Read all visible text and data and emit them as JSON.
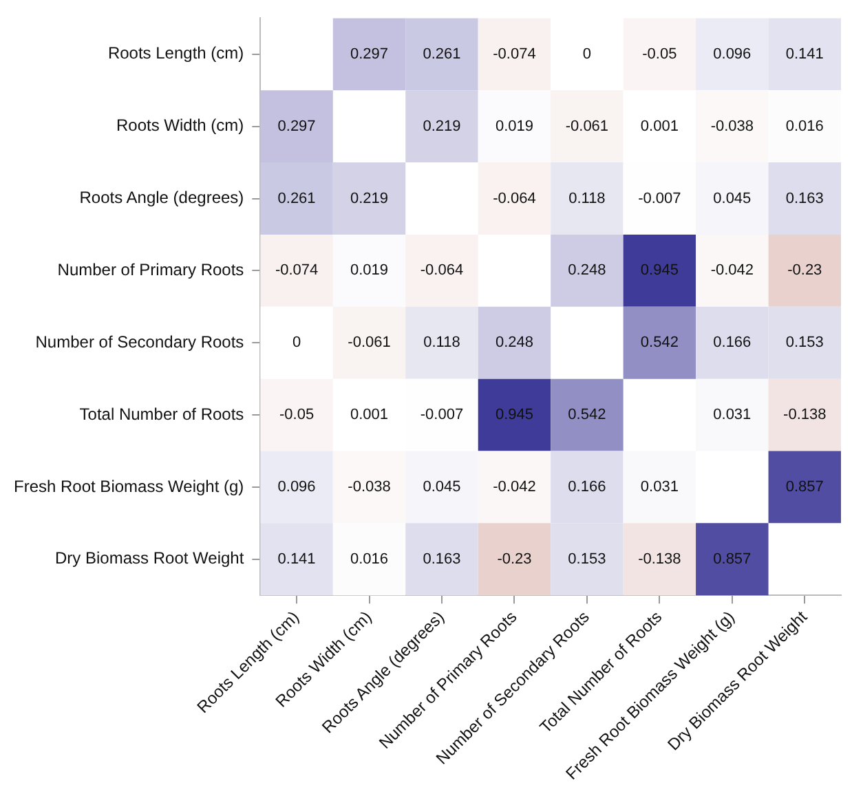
{
  "chart_data": {
    "type": "heatmap",
    "categories": [
      "Roots Length (cm)",
      "Roots Width (cm)",
      "Roots Angle (degrees)",
      "Number of Primary Roots",
      "Number of Secondary Roots",
      "Total Number of Roots",
      "Fresh Root Biomass Weight (g)",
      "Dry Biomass Root Weight"
    ],
    "y_categories": [
      "Roots Length (cm)",
      "Roots Width (cm)",
      "Roots Angle (degrees)",
      "Number of Primary Roots",
      "Number of Secondary Roots",
      "Total Number of Roots",
      "Fresh Root Biomass Weight (g)",
      "Dry Biomass Root Weight"
    ],
    "cells": [
      [
        null,
        0.297,
        0.261,
        -0.074,
        0,
        -0.05,
        0.096,
        0.141
      ],
      [
        0.297,
        null,
        0.219,
        0.019,
        -0.061,
        0.001,
        -0.038,
        0.016
      ],
      [
        0.261,
        0.219,
        null,
        -0.064,
        0.118,
        -0.007,
        0.045,
        0.163
      ],
      [
        -0.074,
        0.019,
        -0.064,
        null,
        0.248,
        0.945,
        -0.042,
        -0.23
      ],
      [
        0,
        -0.061,
        0.118,
        0.248,
        null,
        0.542,
        0.166,
        0.153
      ],
      [
        -0.05,
        0.001,
        -0.007,
        0.945,
        0.542,
        null,
        0.031,
        -0.138
      ],
      [
        0.096,
        -0.038,
        0.045,
        -0.042,
        0.166,
        0.031,
        null,
        0.857
      ],
      [
        0.141,
        0.016,
        0.163,
        -0.23,
        0.153,
        -0.138,
        0.857,
        null
      ]
    ],
    "data_labels": true
  }
}
